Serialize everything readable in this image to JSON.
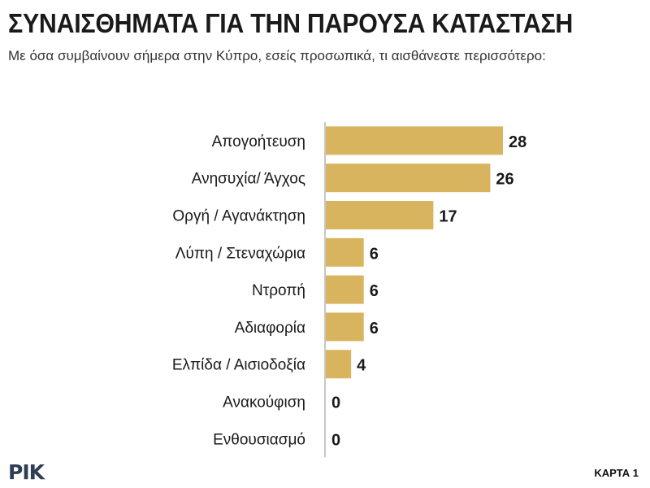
{
  "header": {
    "title": "ΣΥΝΑΙΣΘΗΜΑΤΑ ΓΙΑ ΤΗΝ ΠΑΡΟΥΣΑ ΚΑΤΑΣΤΑΣΗ",
    "subtitle": "Με όσα συμβαίνουν σήμερα στην Κύπρο, εσείς προσωπικά, τι αισθάνεστε περισσότερο:"
  },
  "footer": {
    "logo": "ΡΙΚ",
    "card_label": "ΚΑΡΤΑ 1"
  },
  "colors": {
    "bar": "#d8b45e",
    "axis": "#8c8c8c",
    "text": "#1a1a1a"
  },
  "chart_data": {
    "type": "bar",
    "orientation": "horizontal",
    "title": "ΣΥΝΑΙΣΘΗΜΑΤΑ ΓΙΑ ΤΗΝ ΠΑΡΟΥΣΑ ΚΑΤΑΣΤΑΣΗ",
    "subtitle": "Με όσα συμβαίνουν σήμερα στην Κύπρο, εσείς προσωπικά, τι αισθάνεστε περισσότερο:",
    "categories": [
      "Απογοήτευση",
      "Ανησυχία/ Άγχος",
      "Οργή / Αγανάκτηση",
      "Λύπη / Στεναχώρια",
      "Ντροπή",
      "Αδιαφορία",
      "Ελπίδα / Αισιοδοξία",
      "Ανακούφιση",
      "Ενθουσιασμό"
    ],
    "values": [
      28,
      26,
      17,
      6,
      6,
      6,
      4,
      0,
      0
    ],
    "xlabel": "",
    "ylabel": "",
    "xlim": [
      0,
      28
    ],
    "grid": false,
    "data_labels": true
  }
}
